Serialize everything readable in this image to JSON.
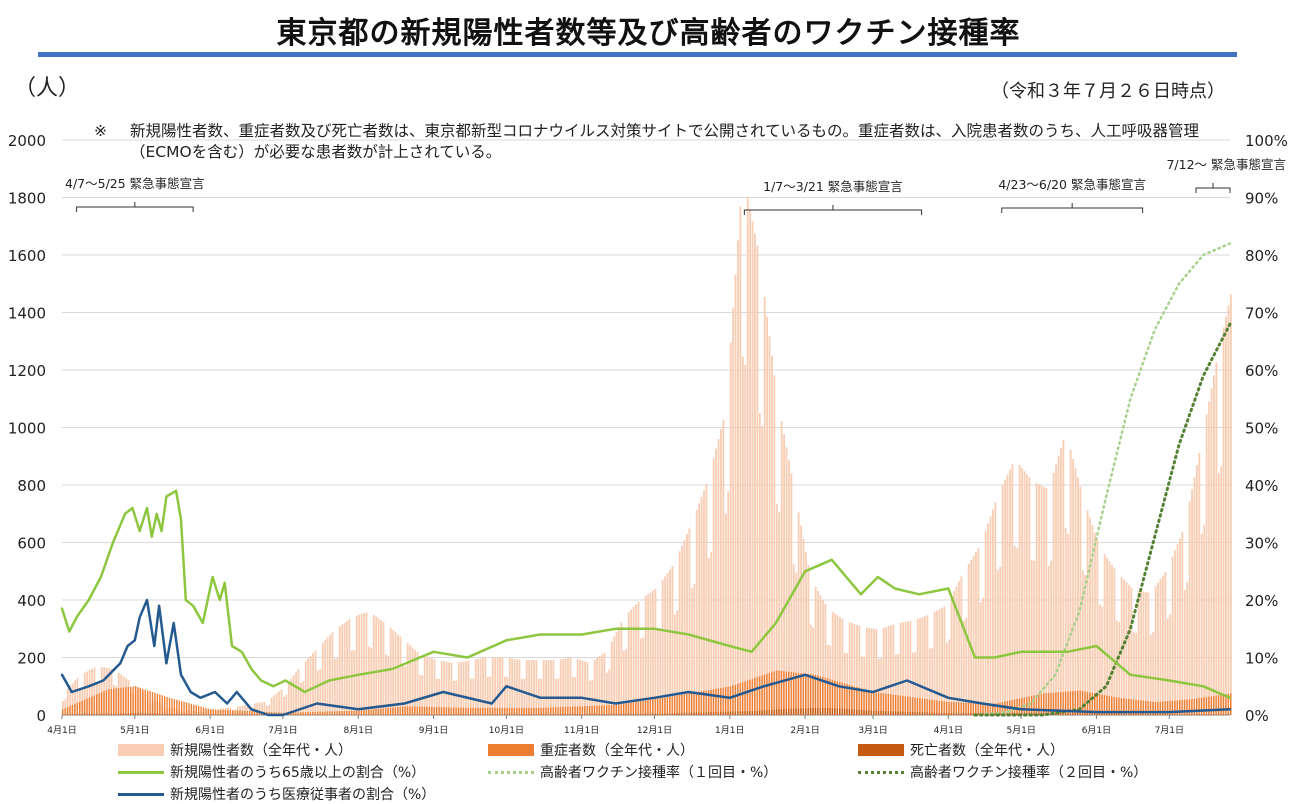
{
  "title": "東京都の新規陽性者数等及び高齢者のワクチン接種率",
  "unit_left": "（人）",
  "as_of": "（令和３年７月２６日時点）",
  "note": {
    "mark": "※",
    "text": "新規陽性者数、重症者数及び死亡者数は、東京都新型コロナウイルス対策サイトで公開されているもの。重症者数は、入院患者数のうち、人工呼吸器管理（ECMOを含む）が必要な患者数が計上されている。"
  },
  "colors": {
    "positives": "#f8cdb3",
    "severe": "#ed7d31",
    "deaths": "#c55a11",
    "elderly_share": "#8dc63f",
    "medical_share": "#245a8f",
    "vaccine1": "#a9d18e",
    "vaccine2": "#548235",
    "grid": "#d9d9d9"
  },
  "chart_data": {
    "type": "bar+line",
    "x_axis": {
      "start": "2020-04-01",
      "end": "2021-07-26",
      "tick_labels": [
        "4月1日",
        "5月1日",
        "6月1日",
        "7月1日",
        "8月1日",
        "9月1日",
        "10月1日",
        "11月1日",
        "12月1日",
        "1月1日",
        "2月1日",
        "3月1日",
        "4月1日",
        "5月1日",
        "6月1日",
        "7月1日"
      ],
      "tick_dates": [
        "2020-04-01",
        "2020-05-01",
        "2020-06-01",
        "2020-07-01",
        "2020-08-01",
        "2020-09-01",
        "2020-10-01",
        "2020-11-01",
        "2020-12-01",
        "2021-01-01",
        "2021-02-01",
        "2021-03-01",
        "2021-04-01",
        "2021-05-01",
        "2021-06-01",
        "2021-07-01"
      ]
    },
    "y_left": {
      "min": 0,
      "max": 2000,
      "ticks": [
        "0",
        "200",
        "400",
        "600",
        "800",
        "1000",
        "1200",
        "1400",
        "1600",
        "1800",
        "2000"
      ]
    },
    "y_right": {
      "min": 0,
      "max": 100,
      "ticks": [
        "0%",
        "10%",
        "20%",
        "30%",
        "40%",
        "50%",
        "60%",
        "70%",
        "80%",
        "90%",
        "100%"
      ]
    },
    "grid": true,
    "legend_position": "bottom",
    "emergency_periods": [
      {
        "label": "4/7～5/25 緊急事態宣言",
        "start": "2020-04-07",
        "end": "2020-05-25"
      },
      {
        "label": "1/7～3/21 緊急事態宣言",
        "start": "2021-01-07",
        "end": "2021-03-21"
      },
      {
        "label": "4/23～6/20 緊急事態宣言",
        "start": "2021-04-23",
        "end": "2021-06-20"
      },
      {
        "label": "7/12～ 緊急事態宣言",
        "start": "2021-07-12",
        "end": "2021-07-26"
      }
    ],
    "series": [
      {
        "key": "positives",
        "name": "新規陽性者数（全年代・人）",
        "kind": "bar",
        "axis": "left",
        "x": [
          "2020-04-01",
          "2020-04-08",
          "2020-04-15",
          "2020-04-22",
          "2020-04-29",
          "2020-05-06",
          "2020-05-13",
          "2020-05-20",
          "2020-05-27",
          "2020-06-03",
          "2020-06-10",
          "2020-06-17",
          "2020-06-24",
          "2020-07-01",
          "2020-07-08",
          "2020-07-15",
          "2020-07-22",
          "2020-07-29",
          "2020-08-05",
          "2020-08-12",
          "2020-08-19",
          "2020-08-26",
          "2020-09-02",
          "2020-09-09",
          "2020-09-16",
          "2020-09-23",
          "2020-09-30",
          "2020-10-07",
          "2020-10-14",
          "2020-10-21",
          "2020-10-28",
          "2020-11-04",
          "2020-11-11",
          "2020-11-18",
          "2020-11-25",
          "2020-12-02",
          "2020-12-09",
          "2020-12-16",
          "2020-12-23",
          "2020-12-30",
          "2021-01-06",
          "2021-01-13",
          "2021-01-20",
          "2021-01-27",
          "2021-02-03",
          "2021-02-10",
          "2021-02-17",
          "2021-02-24",
          "2021-03-03",
          "2021-03-10",
          "2021-03-17",
          "2021-03-24",
          "2021-03-31",
          "2021-04-07",
          "2021-04-14",
          "2021-04-21",
          "2021-04-28",
          "2021-05-05",
          "2021-05-12",
          "2021-05-19",
          "2021-05-26",
          "2021-06-02",
          "2021-06-09",
          "2021-06-16",
          "2021-06-23",
          "2021-06-30",
          "2021-07-07",
          "2021-07-14",
          "2021-07-21",
          "2021-07-26"
        ],
        "values": [
          70,
          130,
          160,
          150,
          110,
          60,
          30,
          15,
          15,
          20,
          25,
          35,
          45,
          90,
          160,
          220,
          280,
          320,
          340,
          300,
          250,
          200,
          180,
          170,
          180,
          190,
          190,
          180,
          180,
          180,
          190,
          170,
          210,
          320,
          380,
          420,
          500,
          630,
          780,
          1000,
          1780,
          1500,
          1050,
          750,
          450,
          350,
          310,
          290,
          280,
          300,
          310,
          330,
          360,
          470,
          560,
          720,
          840,
          770,
          740,
          930,
          720,
          550,
          470,
          410,
          400,
          480,
          620,
          900,
          1200,
          1380
        ]
      },
      {
        "key": "severe",
        "name": "重症者数（全年代・人）",
        "kind": "bar",
        "axis": "left",
        "x": [
          "2020-04-01",
          "2020-04-20",
          "2020-05-01",
          "2020-05-15",
          "2020-06-01",
          "2020-07-01",
          "2020-08-01",
          "2020-08-20",
          "2020-09-15",
          "2020-10-15",
          "2020-11-15",
          "2020-12-01",
          "2020-12-15",
          "2021-01-01",
          "2021-01-20",
          "2021-02-05",
          "2021-03-01",
          "2021-04-01",
          "2021-04-20",
          "2021-05-10",
          "2021-05-25",
          "2021-06-10",
          "2021-06-25",
          "2021-07-10",
          "2021-07-26"
        ],
        "values": [
          20,
          90,
          100,
          60,
          20,
          8,
          15,
          30,
          25,
          25,
          35,
          55,
          75,
          100,
          155,
          140,
          80,
          45,
          40,
          75,
          85,
          60,
          45,
          55,
          75
        ]
      },
      {
        "key": "deaths",
        "name": "死亡者数（全年代・人）",
        "kind": "bar",
        "axis": "left",
        "x": [
          "2020-04-01",
          "2020-05-01",
          "2020-06-01",
          "2020-08-01",
          "2020-10-01",
          "2020-12-01",
          "2021-01-10",
          "2021-01-25",
          "2021-02-10",
          "2021-03-01",
          "2021-04-01",
          "2021-05-15",
          "2021-06-15",
          "2021-07-26"
        ],
        "values": [
          2,
          6,
          2,
          1,
          2,
          4,
          14,
          22,
          25,
          15,
          6,
          8,
          4,
          2
        ]
      },
      {
        "key": "elderly_share",
        "name": "新規陽性者のうち65歳以上の割合（%）",
        "kind": "line",
        "axis": "right",
        "x": [
          "2020-04-01",
          "2020-04-04",
          "2020-04-07",
          "2020-04-12",
          "2020-04-17",
          "2020-04-22",
          "2020-04-27",
          "2020-04-30",
          "2020-05-03",
          "2020-05-06",
          "2020-05-08",
          "2020-05-10",
          "2020-05-12",
          "2020-05-14",
          "2020-05-18",
          "2020-05-20",
          "2020-05-22",
          "2020-05-25",
          "2020-05-29",
          "2020-06-02",
          "2020-06-05",
          "2020-06-07",
          "2020-06-10",
          "2020-06-14",
          "2020-06-18",
          "2020-06-22",
          "2020-06-27",
          "2020-07-02",
          "2020-07-10",
          "2020-07-20",
          "2020-08-01",
          "2020-08-15",
          "2020-09-01",
          "2020-09-15",
          "2020-10-01",
          "2020-10-15",
          "2020-11-01",
          "2020-11-15",
          "2020-12-01",
          "2020-12-15",
          "2021-01-01",
          "2021-01-10",
          "2021-01-20",
          "2021-02-01",
          "2021-02-12",
          "2021-02-24",
          "2021-03-03",
          "2021-03-10",
          "2021-03-20",
          "2021-04-01",
          "2021-04-12",
          "2021-04-20",
          "2021-05-01",
          "2021-05-20",
          "2021-06-01",
          "2021-06-15",
          "2021-07-01",
          "2021-07-15",
          "2021-07-26"
        ],
        "values": [
          18.5,
          14.5,
          17,
          20,
          24,
          30,
          35,
          36,
          32,
          36,
          31,
          35,
          32,
          38,
          39,
          34,
          20,
          19,
          16,
          24,
          20,
          23,
          12,
          11,
          8,
          6,
          5,
          6,
          4,
          6,
          7,
          8,
          11,
          10,
          13,
          14,
          14,
          15,
          15,
          14,
          12,
          11,
          16,
          25,
          27,
          21,
          24,
          22,
          21,
          22,
          10,
          10,
          11,
          11,
          12,
          7,
          6,
          5,
          3
        ]
      },
      {
        "key": "medical_share",
        "name": "新規陽性者のうち医療従事者の割合（%）",
        "kind": "line",
        "axis": "right",
        "x": [
          "2020-04-01",
          "2020-04-05",
          "2020-04-12",
          "2020-04-18",
          "2020-04-25",
          "2020-04-28",
          "2020-05-01",
          "2020-05-03",
          "2020-05-06",
          "2020-05-09",
          "2020-05-11",
          "2020-05-14",
          "2020-05-17",
          "2020-05-20",
          "2020-05-24",
          "2020-05-28",
          "2020-06-03",
          "2020-06-08",
          "2020-06-12",
          "2020-06-18",
          "2020-06-25",
          "2020-07-01",
          "2020-07-15",
          "2020-08-01",
          "2020-08-20",
          "2020-09-05",
          "2020-09-25",
          "2020-10-01",
          "2020-10-15",
          "2020-11-01",
          "2020-11-15",
          "2020-12-01",
          "2020-12-15",
          "2021-01-01",
          "2021-01-15",
          "2021-02-01",
          "2021-02-15",
          "2021-03-01",
          "2021-03-15",
          "2021-04-01",
          "2021-04-15",
          "2021-05-01",
          "2021-06-01",
          "2021-07-01",
          "2021-07-26"
        ],
        "values": [
          7,
          4,
          5,
          6,
          9,
          12,
          13,
          17,
          20,
          12,
          19,
          9,
          16,
          7,
          4,
          3,
          4,
          2,
          4,
          1,
          0,
          0,
          2,
          1,
          2,
          4,
          2,
          5,
          3,
          3,
          2,
          3,
          4,
          3,
          5,
          7,
          5,
          4,
          6,
          3,
          2,
          1,
          0.5,
          0.5,
          1
        ]
      },
      {
        "key": "vaccine1",
        "name": "高齢者ワクチン接種率（１回目・%）",
        "kind": "line",
        "axis": "right",
        "style": "dotted",
        "x": [
          "2021-04-12",
          "2021-04-25",
          "2021-05-05",
          "2021-05-15",
          "2021-05-25",
          "2021-06-05",
          "2021-06-15",
          "2021-06-25",
          "2021-07-05",
          "2021-07-15",
          "2021-07-26"
        ],
        "values": [
          0,
          0.5,
          2,
          7,
          18,
          38,
          55,
          67,
          75,
          80,
          82
        ]
      },
      {
        "key": "vaccine2",
        "name": "高齢者ワクチン接種率（２回目・%）",
        "kind": "line",
        "axis": "right",
        "style": "dotted",
        "x": [
          "2021-04-12",
          "2021-05-10",
          "2021-05-25",
          "2021-06-05",
          "2021-06-15",
          "2021-06-25",
          "2021-07-05",
          "2021-07-15",
          "2021-07-26"
        ],
        "values": [
          0,
          0,
          1,
          5,
          15,
          31,
          47,
          59,
          68
        ]
      }
    ]
  }
}
